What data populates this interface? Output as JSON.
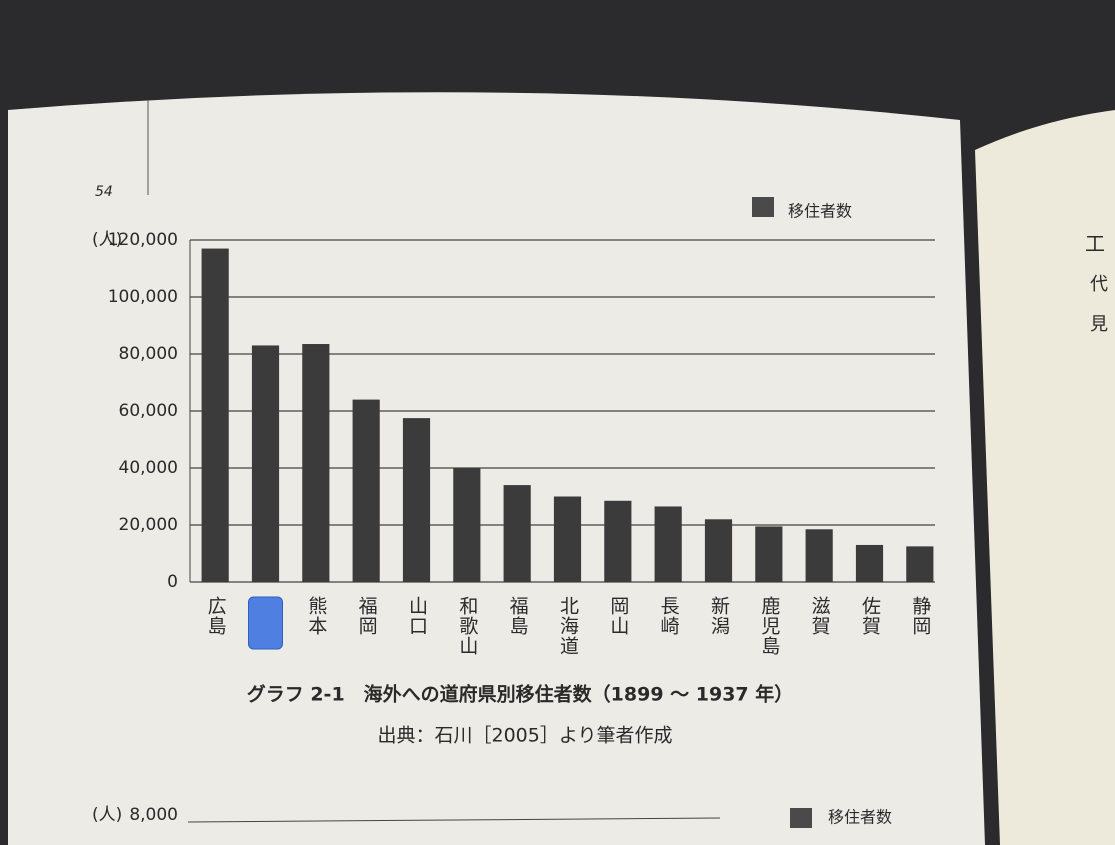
{
  "page_number": "54",
  "chart_data": {
    "type": "bar",
    "y_unit": "(人)",
    "legend": "移住者数",
    "color": "#3b3b3b",
    "grid": true,
    "categories": [
      "広島",
      null,
      "熊本",
      "福岡",
      "山口",
      "和歌山",
      "福島",
      "北海道",
      "岡山",
      "長崎",
      "新潟",
      "鹿児島",
      "滋賀",
      "佐賀",
      "静岡"
    ],
    "values": [
      117000,
      83000,
      83500,
      64000,
      57500,
      40000,
      34000,
      30000,
      28500,
      26500,
      22000,
      19500,
      18500,
      13000,
      12500
    ],
    "ylim": [
      0,
      120000
    ],
    "yticks": [
      0,
      {
        "value": 20000,
        "label": "20,000"
      },
      {
        "value": 40000,
        "label": "40,000"
      },
      {
        "value": 60000,
        "label": "60,000"
      },
      {
        "value": 80000,
        "label": "80,000"
      },
      {
        "value": 100000,
        "label": "100,000"
      },
      {
        "value": 120000,
        "label": "120,000"
      }
    ],
    "caption": "グラフ 2-1　海外への道府県別移住者数（1899 ～ 1937 年）",
    "source": "出典：石川［2005］より筆者作成"
  },
  "next_figure": {
    "y_unit": "(人)",
    "top_tick": "8,000",
    "legend": "移住者数"
  },
  "facing_page": [
    "工",
    "代",
    "見"
  ]
}
